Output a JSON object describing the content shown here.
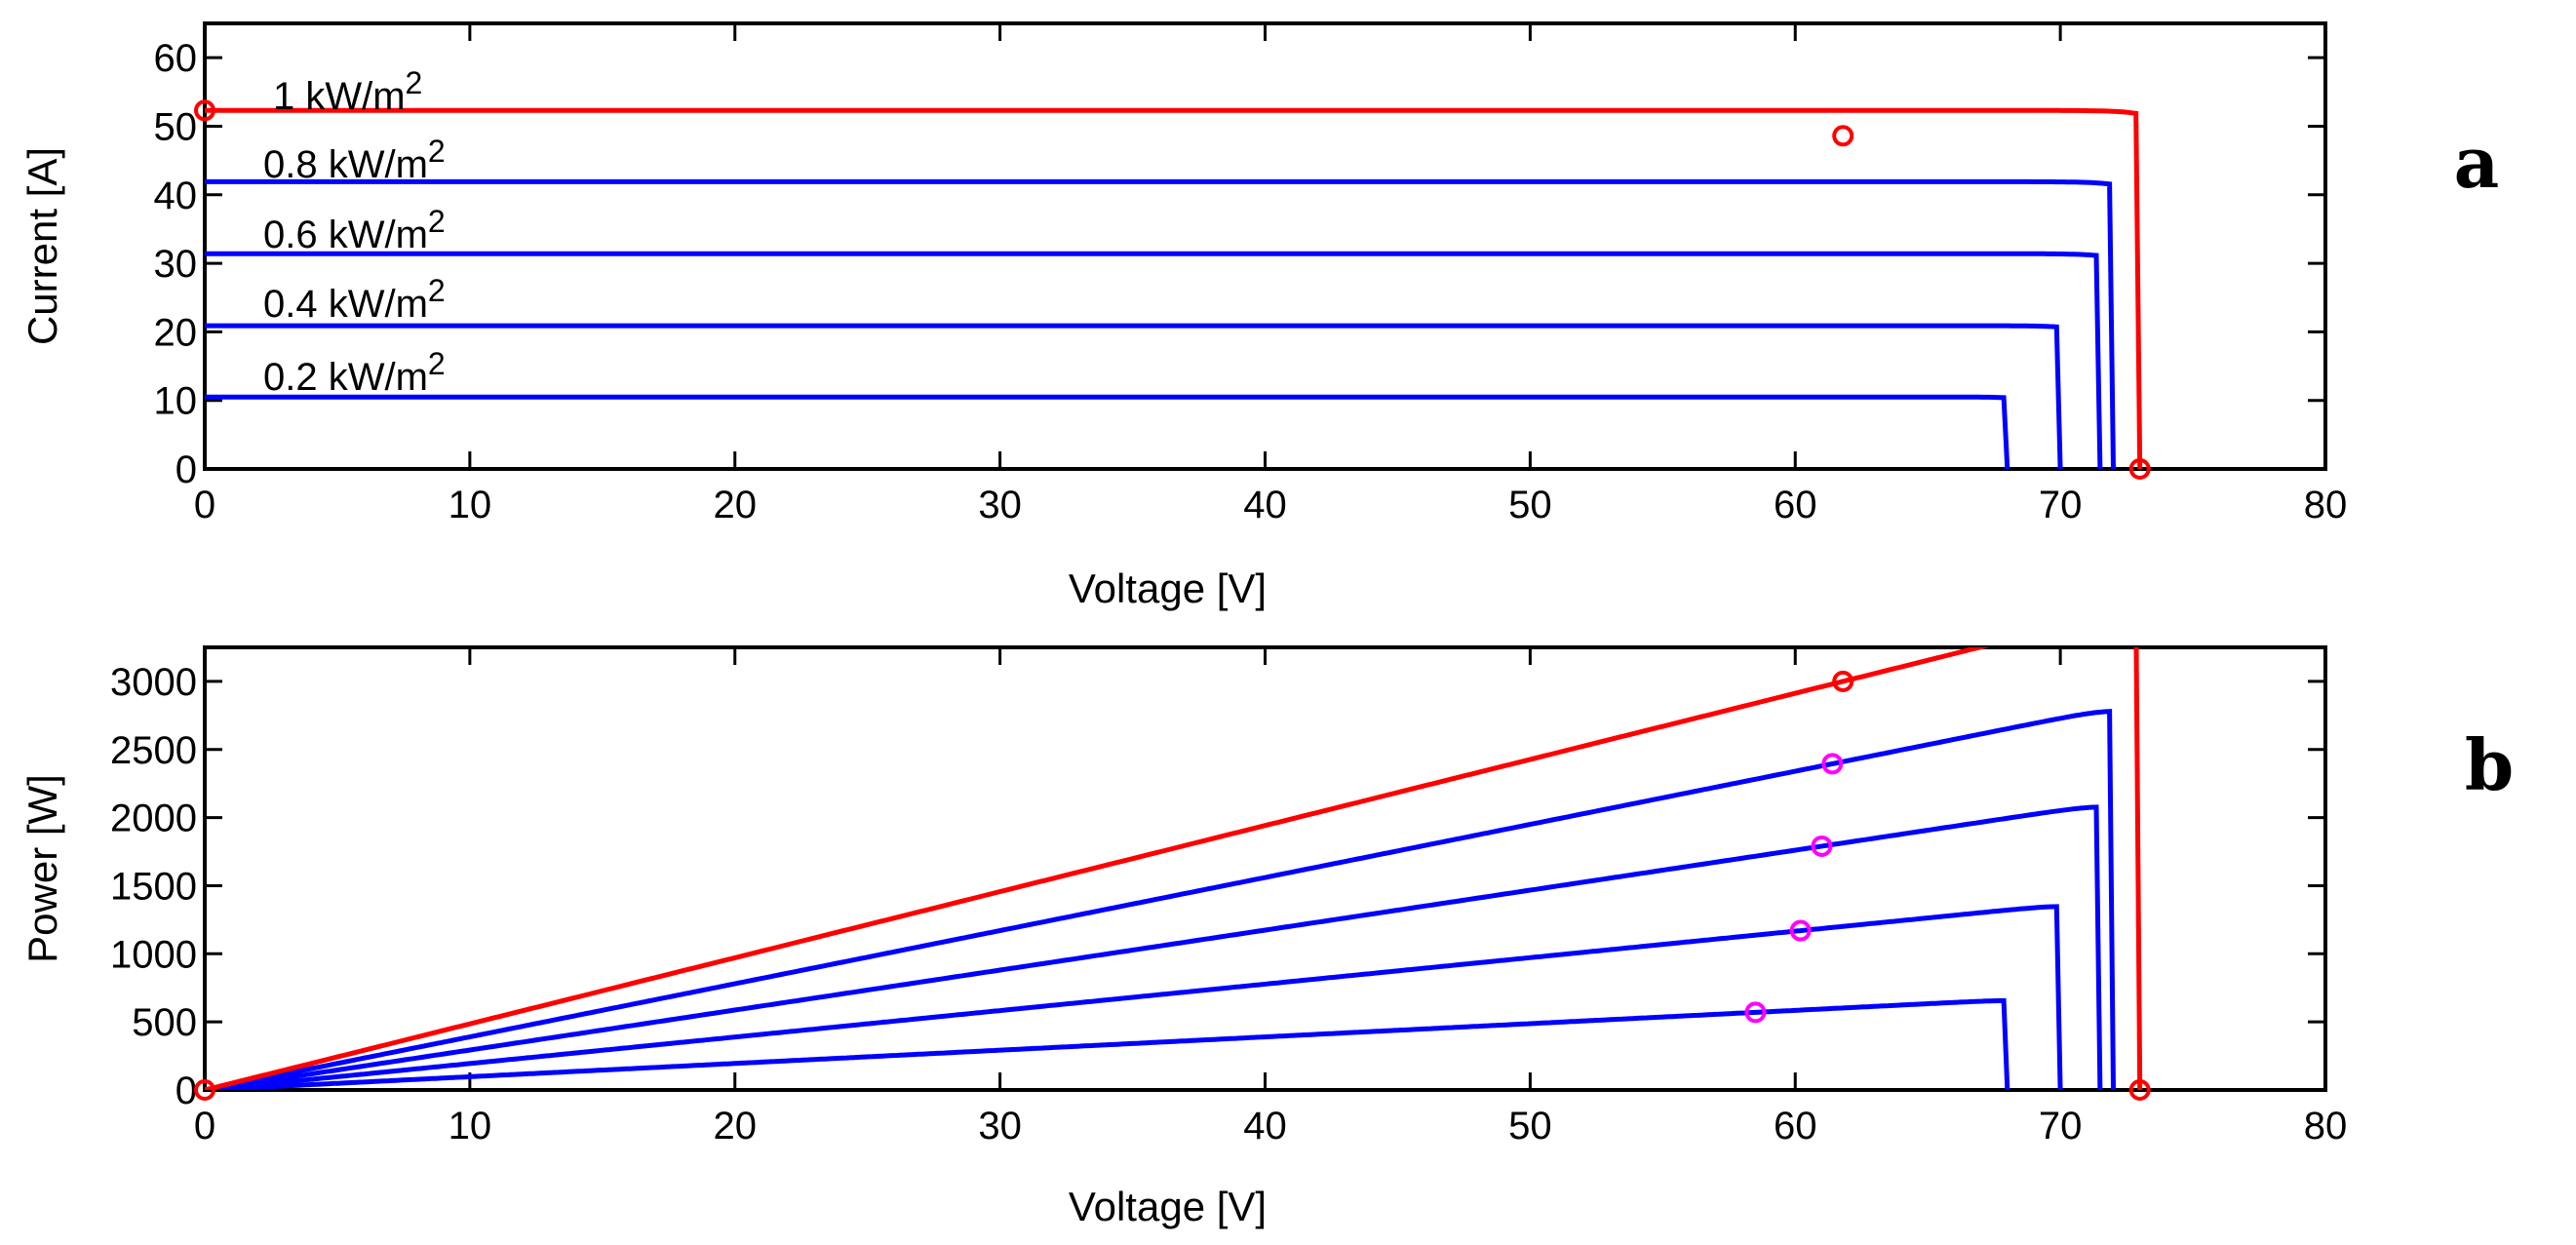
{
  "chart_data": [
    {
      "panel": "a",
      "type": "line",
      "panel_label": "a",
      "xlabel": "Voltage [V]",
      "ylabel": "Current [A]",
      "xlim": [
        0,
        80
      ],
      "ylim": [
        0,
        65
      ],
      "xticks": [
        0,
        10,
        20,
        30,
        40,
        50,
        60,
        70,
        80
      ],
      "yticks": [
        0,
        10,
        20,
        30,
        40,
        50,
        60
      ],
      "grid": false,
      "series": [
        {
          "name": "1 kW/m2",
          "label_text": "1 kW/m",
          "label_sup": "2",
          "color": "#ff0000",
          "isc": 52.3,
          "voc": 73.0,
          "vmpp": 61.8,
          "impp": 48.6
        },
        {
          "name": "0.8 kW/m2",
          "label_text": "0.8 kW/m",
          "label_sup": "2",
          "color": "#0000ff",
          "isc": 41.9,
          "voc": 72.0,
          "vmpp": 61.4,
          "impp": 39.0
        },
        {
          "name": "0.6 kW/m2",
          "label_text": "0.6 kW/m",
          "label_sup": "2",
          "color": "#0000ff",
          "isc": 31.4,
          "voc": 71.5,
          "vmpp": 61.0,
          "impp": 29.3
        },
        {
          "name": "0.4 kW/m2",
          "label_text": "0.4 kW/m",
          "label_sup": "2",
          "color": "#0000ff",
          "isc": 20.9,
          "voc": 70.0,
          "vmpp": 60.2,
          "impp": 19.4
        },
        {
          "name": "0.2 kW/m2",
          "label_text": "0.2 kW/m",
          "label_sup": "2",
          "color": "#0000ff",
          "isc": 10.5,
          "voc": 68.0,
          "vmpp": 58.5,
          "impp": 9.7
        }
      ],
      "markers": [
        {
          "x": 0,
          "y": 52.3,
          "color": "#ff0000"
        },
        {
          "x": 61.8,
          "y": 48.6,
          "color": "#ff0000"
        },
        {
          "x": 73.0,
          "y": 0,
          "color": "#ff0000"
        }
      ]
    },
    {
      "panel": "b",
      "type": "line",
      "panel_label": "b",
      "xlabel": "Voltage [V]",
      "ylabel": "Power [W]",
      "xlim": [
        0,
        80
      ],
      "ylim": [
        0,
        3250
      ],
      "xticks": [
        0,
        10,
        20,
        30,
        40,
        50,
        60,
        70,
        80
      ],
      "yticks": [
        0,
        500,
        1000,
        1500,
        2000,
        2500,
        3000
      ],
      "grid": false,
      "series": [
        {
          "name": "1 kW/m2",
          "color": "#ff0000",
          "vmpp": 61.8,
          "pmpp": 3000,
          "voc": 73.0
        },
        {
          "name": "0.8 kW/m2",
          "color": "#0000ff",
          "vmpp": 61.4,
          "pmpp": 2395,
          "voc": 72.0
        },
        {
          "name": "0.6 kW/m2",
          "color": "#0000ff",
          "vmpp": 61.0,
          "pmpp": 1790,
          "voc": 71.5
        },
        {
          "name": "0.4 kW/m2",
          "color": "#0000ff",
          "vmpp": 60.2,
          "pmpp": 1170,
          "voc": 70.0
        },
        {
          "name": "0.2 kW/m2",
          "color": "#0000ff",
          "vmpp": 58.5,
          "pmpp": 570,
          "voc": 68.0
        }
      ],
      "markers": [
        {
          "x": 0,
          "y": 0,
          "color": "#ff0000"
        },
        {
          "x": 61.8,
          "y": 3000,
          "color": "#ff0000"
        },
        {
          "x": 73.0,
          "y": 0,
          "color": "#ff0000"
        },
        {
          "x": 61.4,
          "y": 2395,
          "color": "#ff00ff"
        },
        {
          "x": 61.0,
          "y": 1790,
          "color": "#ff00ff"
        },
        {
          "x": 60.2,
          "y": 1170,
          "color": "#ff00ff"
        },
        {
          "x": 58.5,
          "y": 570,
          "color": "#ff00ff"
        }
      ]
    }
  ]
}
